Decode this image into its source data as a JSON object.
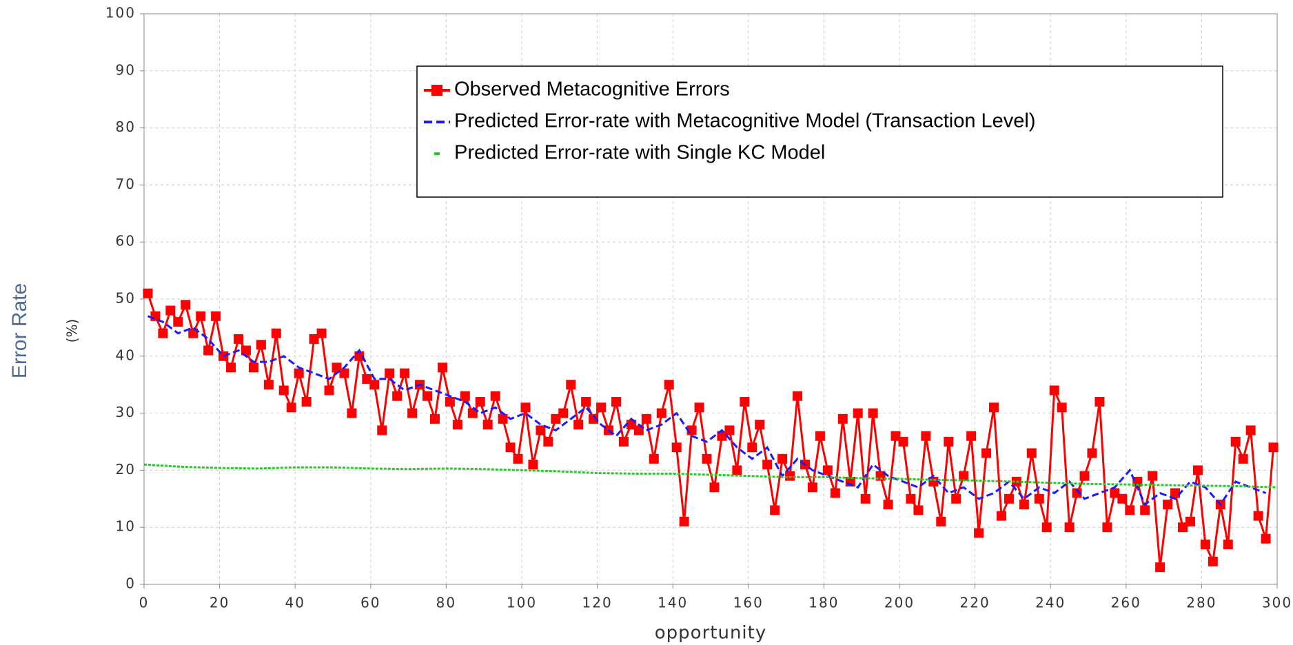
{
  "chart_data": {
    "type": "line",
    "x_label": "opportunity",
    "y_label": "Error Rate",
    "y_unit": "(%)",
    "xlim": [
      0,
      300
    ],
    "xticks": [
      0,
      20,
      40,
      60,
      80,
      100,
      120,
      140,
      160,
      180,
      200,
      220,
      240,
      260,
      280,
      300
    ],
    "ylim": [
      0,
      100
    ],
    "yticks": [
      0,
      10,
      20,
      30,
      40,
      50,
      60,
      70,
      80,
      90,
      100
    ],
    "grid": true,
    "legend": "top-center",
    "series": [
      {
        "name": "Observed Metacognitive Errors",
        "color": "#ff0000",
        "line_style": "solid",
        "marker": "square",
        "x": [
          1,
          3,
          5,
          7,
          9,
          11,
          13,
          15,
          17,
          19,
          21,
          23,
          25,
          27,
          29,
          31,
          33,
          35,
          37,
          39,
          41,
          43,
          45,
          47,
          49,
          51,
          53,
          55,
          57,
          59,
          61,
          63,
          65,
          67,
          69,
          71,
          73,
          75,
          77,
          79,
          81,
          83,
          85,
          87,
          89,
          91,
          93,
          95,
          97,
          99,
          101,
          103,
          105,
          107,
          109,
          111,
          113,
          115,
          117,
          119,
          121,
          123,
          125,
          127,
          129,
          131,
          133,
          135,
          137,
          139,
          141,
          143,
          145,
          147,
          149,
          151,
          153,
          155,
          157,
          159,
          161,
          163,
          165,
          167,
          169,
          171,
          173,
          175,
          177,
          179,
          181,
          183,
          185,
          187,
          189,
          191,
          193,
          195,
          197,
          199,
          201,
          203,
          205,
          207,
          209,
          211,
          213,
          215,
          217,
          219,
          221,
          223,
          225,
          227,
          229,
          231,
          233,
          235,
          237,
          239,
          241,
          243,
          245,
          247,
          249,
          251,
          253,
          255,
          257,
          259,
          261,
          263,
          265,
          267,
          269,
          271,
          273,
          275,
          277,
          279,
          281,
          283,
          285,
          287,
          289,
          291,
          293,
          295,
          297,
          299
        ],
        "values": [
          51,
          47,
          44,
          48,
          46,
          49,
          44,
          47,
          41,
          47,
          40,
          38,
          43,
          41,
          38,
          42,
          35,
          44,
          34,
          31,
          37,
          32,
          43,
          44,
          34,
          38,
          37,
          30,
          40,
          36,
          35,
          27,
          37,
          33,
          37,
          30,
          35,
          33,
          29,
          38,
          32,
          28,
          33,
          30,
          32,
          28,
          33,
          29,
          24,
          22,
          31,
          21,
          27,
          25,
          29,
          30,
          35,
          28,
          32,
          29,
          31,
          27,
          32,
          25,
          28,
          27,
          29,
          22,
          30,
          35,
          24,
          11,
          27,
          31,
          22,
          17,
          26,
          27,
          20,
          32,
          24,
          28,
          21,
          13,
          22,
          19,
          33,
          21,
          17,
          26,
          20,
          16,
          29,
          18,
          30,
          15,
          30,
          19,
          14,
          26,
          25,
          15,
          13,
          26,
          18,
          11,
          25,
          15,
          19,
          26,
          9,
          23,
          31,
          12,
          15,
          18,
          14,
          23,
          15,
          10,
          34,
          31,
          10,
          16,
          19,
          23,
          32,
          10,
          16,
          15,
          13,
          18,
          13,
          19,
          3,
          14,
          16,
          10,
          11,
          20,
          7,
          4,
          14,
          7,
          25,
          22,
          27,
          12,
          8,
          24
        ]
      },
      {
        "name": "Predicted Error-rate with Metacognitive Model (Transaction Level)",
        "color": "#1a1aff",
        "line_style": "dashed",
        "x": [
          1,
          5,
          9,
          13,
          17,
          21,
          25,
          29,
          33,
          37,
          41,
          45,
          49,
          53,
          57,
          61,
          65,
          69,
          73,
          77,
          81,
          85,
          89,
          93,
          97,
          101,
          105,
          109,
          113,
          117,
          121,
          125,
          129,
          133,
          137,
          141,
          145,
          149,
          153,
          157,
          161,
          165,
          169,
          173,
          177,
          181,
          185,
          189,
          193,
          197,
          201,
          205,
          209,
          213,
          217,
          221,
          225,
          229,
          233,
          237,
          241,
          245,
          249,
          253,
          257,
          261,
          265,
          269,
          273,
          277,
          281,
          285,
          289,
          293,
          297
        ],
        "values": [
          47,
          46,
          44,
          45,
          43,
          40,
          41,
          39,
          39,
          40,
          38,
          37,
          36,
          38,
          41,
          36,
          36,
          34,
          35,
          34,
          33,
          32,
          30,
          31,
          29,
          30,
          28,
          27,
          29,
          31,
          28,
          26,
          29,
          27,
          28,
          30,
          26,
          25,
          27,
          24,
          22,
          24,
          19,
          22,
          20,
          19,
          18,
          17,
          21,
          19,
          18,
          17,
          19,
          16,
          17,
          15,
          16,
          18,
          15,
          17,
          16,
          18,
          15,
          16,
          17,
          20,
          14,
          16,
          15,
          18,
          17,
          14,
          18,
          17,
          16
        ]
      },
      {
        "name": "Predicted Error-rate with Single KC Model",
        "color": "#22cc22",
        "line_style": "dashed",
        "x": [
          0,
          10,
          20,
          30,
          40,
          50,
          60,
          70,
          80,
          90,
          100,
          110,
          120,
          130,
          140,
          150,
          160,
          170,
          180,
          190,
          200,
          210,
          220,
          230,
          240,
          250,
          260,
          270,
          280,
          290,
          300
        ],
        "values": [
          21,
          20.6,
          20.4,
          20.3,
          20.5,
          20.5,
          20.3,
          20.2,
          20.3,
          20.2,
          20,
          19.8,
          19.5,
          19.4,
          19.4,
          19.2,
          19,
          18.8,
          18.8,
          18.6,
          18.5,
          18.3,
          18.2,
          18,
          17.8,
          17.6,
          17.5,
          17.4,
          17.3,
          17.2,
          17
        ]
      }
    ]
  }
}
